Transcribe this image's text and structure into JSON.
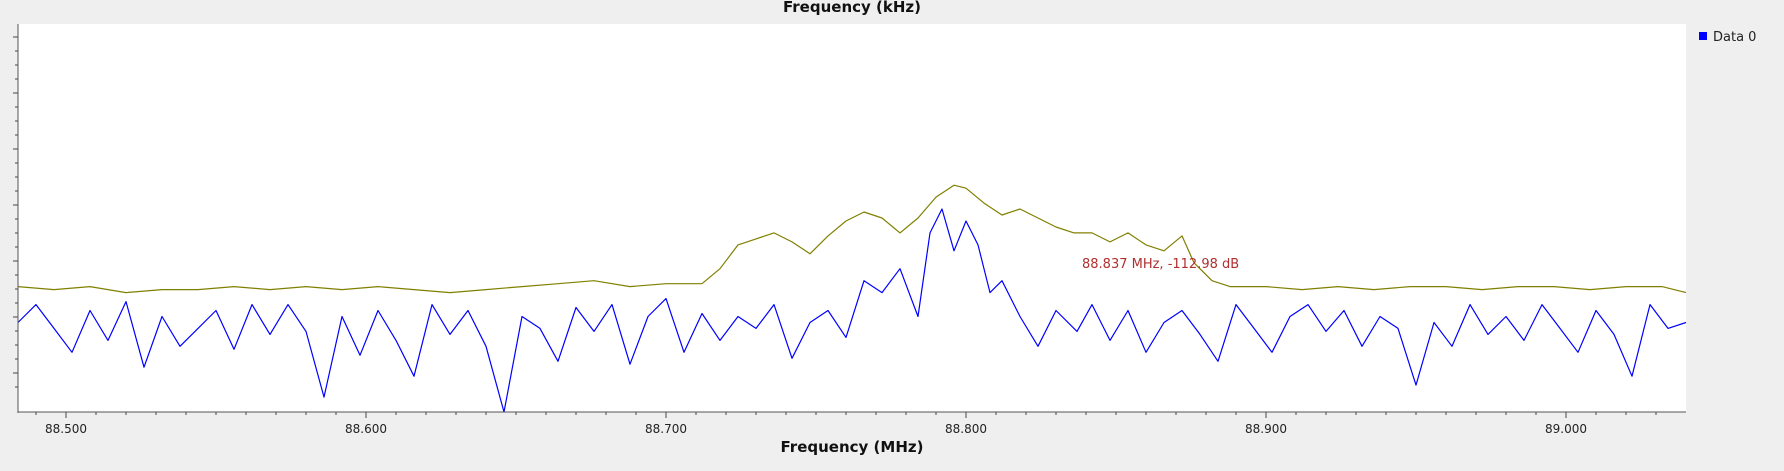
{
  "chart_data": {
    "type": "line",
    "top_axis_title": "Frequency (kHz)",
    "xlabel": "Frequency (MHz)",
    "xlim": [
      88.484,
      89.04
    ],
    "x_ticks": [
      "88.500",
      "88.600",
      "88.700",
      "88.800",
      "88.900",
      "89.000"
    ],
    "ylim": [
      -140,
      -10
    ],
    "grid": false,
    "legend_position": "top-right",
    "legend": [
      {
        "label": "Data 0",
        "color": "#0000ff"
      }
    ],
    "marker_text": "88.837 MHz, -112.98 dB",
    "series": [
      {
        "color": "#0000ff",
        "points": [
          [
            88.484,
            -110
          ],
          [
            88.49,
            -104
          ],
          [
            88.496,
            -112
          ],
          [
            88.502,
            -120
          ],
          [
            88.508,
            -106
          ],
          [
            88.514,
            -116
          ],
          [
            88.52,
            -103
          ],
          [
            88.526,
            -125
          ],
          [
            88.532,
            -108
          ],
          [
            88.538,
            -118
          ],
          [
            88.544,
            -112
          ],
          [
            88.55,
            -106
          ],
          [
            88.556,
            -119
          ],
          [
            88.562,
            -104
          ],
          [
            88.568,
            -114
          ],
          [
            88.574,
            -104
          ],
          [
            88.58,
            -113
          ],
          [
            88.586,
            -135
          ],
          [
            88.592,
            -108
          ],
          [
            88.598,
            -121
          ],
          [
            88.604,
            -106
          ],
          [
            88.61,
            -116
          ],
          [
            88.616,
            -128
          ],
          [
            88.622,
            -104
          ],
          [
            88.628,
            -114
          ],
          [
            88.634,
            -106
          ],
          [
            88.64,
            -118
          ],
          [
            88.646,
            -140
          ],
          [
            88.652,
            -108
          ],
          [
            88.658,
            -112
          ],
          [
            88.664,
            -123
          ],
          [
            88.67,
            -105
          ],
          [
            88.676,
            -113
          ],
          [
            88.682,
            -104
          ],
          [
            88.688,
            -124
          ],
          [
            88.694,
            -108
          ],
          [
            88.7,
            -102
          ],
          [
            88.706,
            -120
          ],
          [
            88.712,
            -107
          ],
          [
            88.718,
            -116
          ],
          [
            88.724,
            -108
          ],
          [
            88.73,
            -112
          ],
          [
            88.736,
            -104
          ],
          [
            88.742,
            -122
          ],
          [
            88.748,
            -110
          ],
          [
            88.754,
            -106
          ],
          [
            88.76,
            -115
          ],
          [
            88.766,
            -96
          ],
          [
            88.772,
            -100
          ],
          [
            88.778,
            -92
          ],
          [
            88.784,
            -108
          ],
          [
            88.788,
            -80
          ],
          [
            88.792,
            -72
          ],
          [
            88.796,
            -86
          ],
          [
            88.8,
            -76
          ],
          [
            88.804,
            -84
          ],
          [
            88.808,
            -100
          ],
          [
            88.812,
            -96
          ],
          [
            88.818,
            -108
          ],
          [
            88.824,
            -118
          ],
          [
            88.83,
            -106
          ],
          [
            88.837,
            -112.98
          ],
          [
            88.842,
            -104
          ],
          [
            88.848,
            -116
          ],
          [
            88.854,
            -106
          ],
          [
            88.86,
            -120
          ],
          [
            88.866,
            -110
          ],
          [
            88.872,
            -106
          ],
          [
            88.878,
            -114
          ],
          [
            88.884,
            -123
          ],
          [
            88.89,
            -104
          ],
          [
            88.896,
            -112
          ],
          [
            88.902,
            -120
          ],
          [
            88.908,
            -108
          ],
          [
            88.914,
            -104
          ],
          [
            88.92,
            -113
          ],
          [
            88.926,
            -106
          ],
          [
            88.932,
            -118
          ],
          [
            88.938,
            -108
          ],
          [
            88.944,
            -112
          ],
          [
            88.95,
            -131
          ],
          [
            88.956,
            -110
          ],
          [
            88.962,
            -118
          ],
          [
            88.968,
            -104
          ],
          [
            88.974,
            -114
          ],
          [
            88.98,
            -108
          ],
          [
            88.986,
            -116
          ],
          [
            88.992,
            -104
          ],
          [
            88.998,
            -112
          ],
          [
            89.004,
            -120
          ],
          [
            89.01,
            -106
          ],
          [
            89.016,
            -114
          ],
          [
            89.022,
            -128
          ],
          [
            89.028,
            -104
          ],
          [
            89.034,
            -112
          ],
          [
            89.04,
            -110
          ]
        ]
      },
      {
        "color": "#808000",
        "points": [
          [
            88.484,
            -98
          ],
          [
            88.496,
            -99
          ],
          [
            88.508,
            -98
          ],
          [
            88.52,
            -100
          ],
          [
            88.532,
            -99
          ],
          [
            88.544,
            -99
          ],
          [
            88.556,
            -98
          ],
          [
            88.568,
            -99
          ],
          [
            88.58,
            -98
          ],
          [
            88.592,
            -99
          ],
          [
            88.604,
            -98
          ],
          [
            88.616,
            -99
          ],
          [
            88.628,
            -100
          ],
          [
            88.64,
            -99
          ],
          [
            88.652,
            -98
          ],
          [
            88.664,
            -97
          ],
          [
            88.676,
            -96
          ],
          [
            88.688,
            -98
          ],
          [
            88.7,
            -97
          ],
          [
            88.712,
            -97
          ],
          [
            88.718,
            -92
          ],
          [
            88.724,
            -84
          ],
          [
            88.73,
            -82
          ],
          [
            88.736,
            -80
          ],
          [
            88.742,
            -83
          ],
          [
            88.748,
            -87
          ],
          [
            88.754,
            -81
          ],
          [
            88.76,
            -76
          ],
          [
            88.766,
            -73
          ],
          [
            88.772,
            -75
          ],
          [
            88.778,
            -80
          ],
          [
            88.784,
            -75
          ],
          [
            88.79,
            -68
          ],
          [
            88.796,
            -64
          ],
          [
            88.8,
            -65
          ],
          [
            88.806,
            -70
          ],
          [
            88.812,
            -74
          ],
          [
            88.818,
            -72
          ],
          [
            88.824,
            -75
          ],
          [
            88.83,
            -78
          ],
          [
            88.836,
            -80
          ],
          [
            88.842,
            -80
          ],
          [
            88.848,
            -83
          ],
          [
            88.854,
            -80
          ],
          [
            88.86,
            -84
          ],
          [
            88.866,
            -86
          ],
          [
            88.872,
            -81
          ],
          [
            88.876,
            -90
          ],
          [
            88.882,
            -96
          ],
          [
            88.888,
            -98
          ],
          [
            88.9,
            -98
          ],
          [
            88.912,
            -99
          ],
          [
            88.924,
            -98
          ],
          [
            88.936,
            -99
          ],
          [
            88.948,
            -98
          ],
          [
            88.96,
            -98
          ],
          [
            88.972,
            -99
          ],
          [
            88.984,
            -98
          ],
          [
            88.996,
            -98
          ],
          [
            89.008,
            -99
          ],
          [
            89.02,
            -98
          ],
          [
            89.032,
            -98
          ],
          [
            89.04,
            -100
          ]
        ]
      }
    ]
  }
}
